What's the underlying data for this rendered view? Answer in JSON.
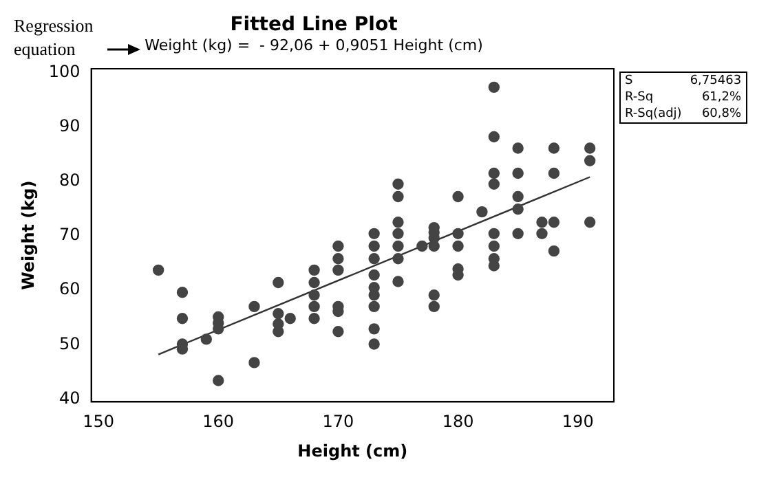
{
  "chart_data": {
    "type": "scatter",
    "title": "Fitted Line Plot",
    "subtitle": "Weight (kg) =  - 92,06 + 0,9051 Height (cm)",
    "xlabel": "Height (cm)",
    "ylabel": "Weight (kg)",
    "annotations": [
      "Regression equation",
      "S",
      "6,75463",
      "R-Sq",
      "61,2%",
      "R-Sq(adj)",
      "60,8%"
    ],
    "xlim": [
      149.4,
      193
    ],
    "xticks": [
      150,
      160,
      170,
      180,
      190
    ],
    "ylim": [
      39.5,
      100.7
    ],
    "yticks": [
      40,
      50,
      60,
      70,
      80,
      90,
      100
    ],
    "grid": false,
    "legend": false,
    "marker": "circle",
    "series": [
      {
        "type": "scatter",
        "color": "#444444",
        "x": [
          155,
          157,
          157,
          157,
          157,
          159,
          160,
          160,
          160,
          160,
          163,
          163,
          165,
          165,
          165,
          165,
          166,
          168,
          168,
          168,
          168,
          168,
          170,
          170,
          170,
          170,
          170,
          170,
          173,
          173,
          173,
          173,
          173,
          173,
          173,
          173,
          173,
          175,
          175,
          175,
          175,
          175,
          175,
          175,
          177,
          178,
          178,
          178,
          178,
          178,
          178,
          180,
          180,
          180,
          180,
          180,
          182,
          183,
          183,
          183,
          183,
          183,
          183,
          183,
          183,
          185,
          185,
          185,
          185,
          185,
          187,
          187,
          188,
          188,
          188,
          188,
          191,
          191,
          191
        ],
        "values": [
          63.7,
          59.6,
          54.8,
          50.1,
          49.2,
          51.0,
          55.1,
          54.0,
          52.9,
          43.4,
          57.0,
          46.7,
          61.4,
          55.7,
          53.8,
          52.4,
          54.8,
          63.7,
          61.4,
          59.1,
          57.0,
          54.8,
          68.1,
          65.8,
          63.7,
          57.0,
          56.1,
          52.4,
          70.4,
          68.1,
          65.8,
          62.8,
          60.5,
          59.1,
          57.0,
          52.9,
          50.1,
          79.5,
          77.2,
          72.5,
          70.4,
          68.1,
          65.8,
          61.6,
          68.1,
          71.5,
          70.6,
          69.6,
          68.1,
          59.1,
          57.0,
          77.2,
          70.4,
          68.1,
          63.9,
          62.8,
          74.4,
          97.3,
          88.2,
          81.5,
          79.5,
          70.4,
          68.1,
          65.8,
          64.5,
          86.1,
          81.5,
          77.2,
          74.9,
          70.4,
          72.5,
          70.4,
          86.1,
          81.5,
          72.5,
          67.2,
          86.1,
          83.8,
          72.5
        ]
      },
      {
        "type": "line",
        "color": "#333333",
        "marker": "none",
        "line_style": "solid",
        "x": [
          155,
          191
        ],
        "values": [
          48.2,
          80.8
        ]
      }
    ]
  }
}
